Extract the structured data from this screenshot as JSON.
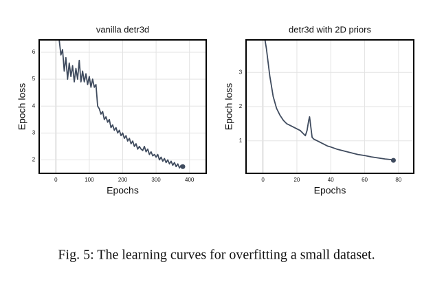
{
  "chart_data": [
    {
      "type": "line",
      "title": "vanilla detr3d",
      "x_label": "Epochs",
      "y_label": "Epoch loss",
      "xlim": [
        -50,
        450
      ],
      "ylim": [
        1.5,
        6.46
      ],
      "xticks": [
        0,
        100,
        200,
        300,
        400
      ],
      "yticks": [
        2,
        3,
        4,
        5,
        6
      ],
      "grid": true,
      "series": [
        {
          "color": "#3f4b5e",
          "x": [
            10,
            15,
            20,
            25,
            30,
            35,
            40,
            45,
            50,
            55,
            60,
            65,
            70,
            75,
            80,
            85,
            90,
            95,
            100,
            105,
            110,
            115,
            120,
            125,
            130,
            135,
            140,
            145,
            150,
            155,
            160,
            165,
            170,
            175,
            180,
            185,
            190,
            195,
            200,
            205,
            210,
            215,
            220,
            225,
            230,
            235,
            240,
            245,
            250,
            255,
            260,
            265,
            270,
            275,
            280,
            285,
            290,
            295,
            300,
            305,
            310,
            315,
            320,
            325,
            330,
            335,
            340,
            345,
            350,
            355,
            360,
            365,
            370,
            375,
            380
          ],
          "values": [
            6.45,
            5.9,
            6.1,
            5.3,
            5.8,
            5.0,
            5.6,
            5.1,
            5.5,
            4.9,
            5.4,
            5.0,
            5.7,
            4.9,
            5.3,
            4.9,
            5.2,
            4.8,
            5.1,
            4.7,
            5.0,
            4.7,
            4.8,
            4.0,
            3.9,
            3.7,
            3.8,
            3.5,
            3.6,
            3.4,
            3.5,
            3.2,
            3.3,
            3.1,
            3.2,
            3.0,
            3.1,
            2.9,
            3.0,
            2.8,
            2.9,
            2.7,
            2.8,
            2.6,
            2.7,
            2.5,
            2.6,
            2.4,
            2.5,
            2.4,
            2.35,
            2.5,
            2.3,
            2.4,
            2.2,
            2.3,
            2.15,
            2.2,
            2.1,
            2.2,
            2.0,
            2.1,
            1.95,
            2.05,
            1.9,
            2.0,
            1.85,
            1.95,
            1.8,
            1.9,
            1.75,
            1.85,
            1.7,
            1.8,
            1.75
          ]
        }
      ]
    },
    {
      "type": "line",
      "title": "detr3d with 2D priors",
      "x_label": "Epochs",
      "y_label": "Epoch loss",
      "xlim": [
        -10,
        89
      ],
      "ylim": [
        0.05,
        3.95
      ],
      "xticks": [
        0,
        20,
        40,
        60,
        80
      ],
      "yticks": [
        1,
        2,
        3
      ],
      "grid": true,
      "series": [
        {
          "color": "#3f4b5e",
          "x": [
            1,
            2,
            4,
            6,
            8,
            10,
            12,
            14,
            16,
            18,
            20,
            22,
            24,
            25,
            26,
            27,
            27.5,
            28,
            29,
            30,
            32,
            34,
            36,
            38,
            40,
            44,
            48,
            52,
            56,
            60,
            64,
            68,
            72,
            76,
            77
          ],
          "values": [
            4.0,
            3.7,
            2.9,
            2.3,
            1.95,
            1.75,
            1.6,
            1.5,
            1.45,
            1.4,
            1.35,
            1.3,
            1.2,
            1.15,
            1.3,
            1.6,
            1.7,
            1.5,
            1.1,
            1.05,
            1.0,
            0.95,
            0.9,
            0.85,
            0.82,
            0.75,
            0.7,
            0.65,
            0.6,
            0.57,
            0.53,
            0.5,
            0.47,
            0.45,
            0.43
          ]
        }
      ]
    }
  ],
  "caption": "Fig. 5: The learning curves for overfitting a small dataset."
}
